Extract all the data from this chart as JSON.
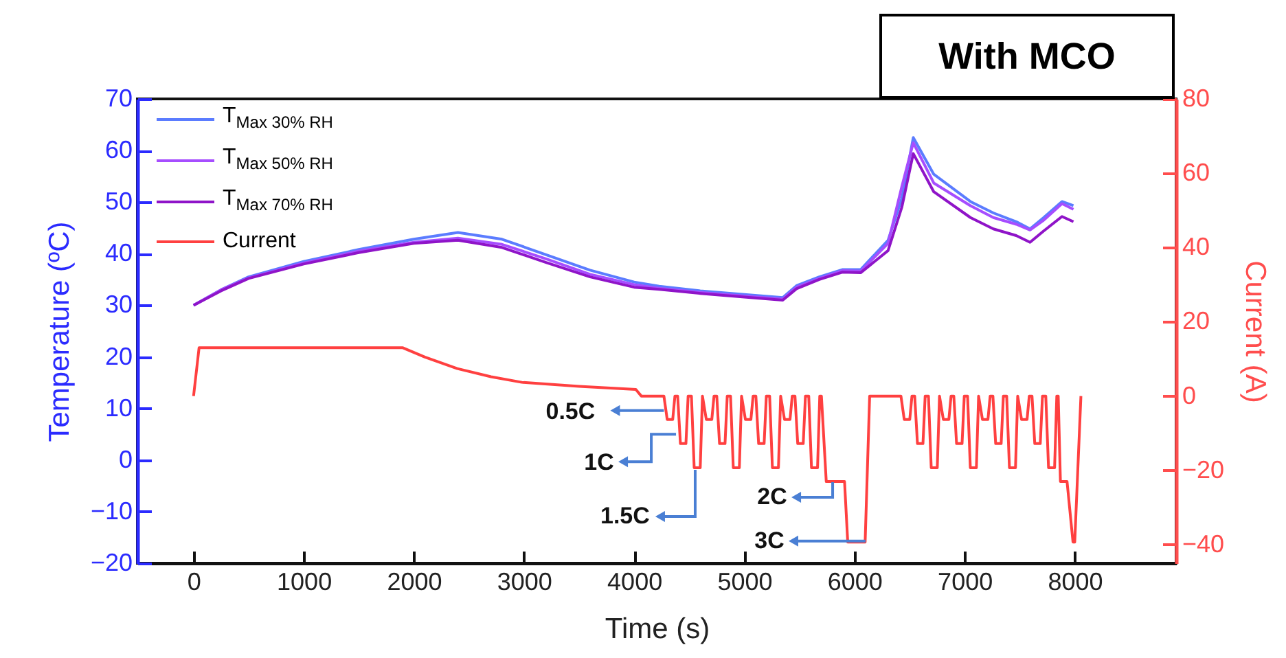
{
  "chart_data": {
    "type": "line",
    "title": "With MCO",
    "xlabel": "Time (s)",
    "ylabel": "Temperature (ºC)",
    "y2label": "Current (A)",
    "xlim": [
      -510,
      8920
    ],
    "xticks": [
      0,
      1000,
      2000,
      3000,
      4000,
      5000,
      6000,
      7000,
      8000
    ],
    "ylim": [
      -20,
      70
    ],
    "yticks": [
      -20,
      -10,
      0,
      10,
      20,
      30,
      40,
      50,
      60,
      70
    ],
    "y2lim": [
      -45,
      80
    ],
    "y2ticks": [
      -40,
      -20,
      0,
      20,
      40,
      60,
      80
    ],
    "legend": "top left",
    "series": [
      {
        "name": "T$_{Max 30% RH}$",
        "color": "#5b7cff",
        "x": [
          0,
          250,
          500,
          1000,
          1500,
          2000,
          2400,
          2800,
          3200,
          3600,
          4000,
          4227,
          4600,
          5000,
          5349,
          5474,
          5681,
          5889,
          6056,
          6305,
          6430,
          6534,
          6720,
          7053,
          7261,
          7469,
          7594,
          7718,
          7884,
          7988
        ],
        "values": [
          30,
          33,
          35.5,
          38.5,
          40.8,
          42.8,
          44.1,
          42.8,
          39.8,
          36.8,
          34.5,
          33.7,
          32.8,
          32.1,
          31.5,
          33.8,
          35.5,
          36.9,
          36.9,
          42.6,
          50.7,
          62.5,
          55.4,
          50.1,
          47.9,
          46.2,
          44.8,
          47.0,
          50.1,
          49.3
        ]
      },
      {
        "name": "T$_{Max 50% RH}$",
        "color": "#a64dff",
        "x": [
          0,
          250,
          500,
          1000,
          1500,
          2000,
          2400,
          2800,
          3200,
          3600,
          4000,
          4227,
          4600,
          5000,
          5349,
          5474,
          5681,
          5889,
          6056,
          6305,
          6430,
          6534,
          6720,
          7053,
          7261,
          7469,
          7594,
          7718,
          7884,
          7988
        ],
        "values": [
          30,
          33,
          35.3,
          38.2,
          40.5,
          42.2,
          43.0,
          41.8,
          39.0,
          36.0,
          34.0,
          33.3,
          32.5,
          31.8,
          31.2,
          33.5,
          35.2,
          36.7,
          36.6,
          42.0,
          53.0,
          61.5,
          53.7,
          49.3,
          47.0,
          45.7,
          44.6,
          46.5,
          49.7,
          48.6
        ]
      },
      {
        "name": "T$_{Max 70% RH}$",
        "color": "#8f14c8",
        "x": [
          0,
          250,
          500,
          1000,
          1500,
          2000,
          2400,
          2800,
          3200,
          3600,
          4000,
          4227,
          4600,
          5000,
          5349,
          5474,
          5681,
          5889,
          6056,
          6305,
          6430,
          6534,
          6720,
          7053,
          7261,
          7469,
          7594,
          7718,
          7884,
          7988
        ],
        "values": [
          30,
          32.8,
          35.2,
          38.0,
          40.2,
          42.0,
          42.6,
          41.2,
          38.3,
          35.5,
          33.5,
          33.1,
          32.3,
          31.6,
          31.0,
          33.2,
          35.0,
          36.4,
          36.3,
          40.6,
          49.0,
          59.4,
          52.0,
          47.0,
          44.8,
          43.5,
          42.2,
          44.4,
          47.2,
          46.2
        ]
      },
      {
        "name": "Current",
        "color": "#ff4040",
        "axis": "y2",
        "x": [
          0,
          50,
          1900,
          2100,
          2394,
          2700,
          2980,
          3500,
          4015,
          4065,
          4270,
          4300,
          4350,
          4370,
          4395,
          4420,
          4470,
          4490,
          4520,
          4545,
          4600,
          4620,
          4655,
          4705,
          4725,
          4750,
          4775,
          4825,
          4845,
          4875,
          4900,
          4955,
          4975,
          5010,
          5060,
          5080,
          5105,
          5130,
          5180,
          5200,
          5230,
          5255,
          5310,
          5330,
          5365,
          5415,
          5435,
          5460,
          5485,
          5535,
          5555,
          5585,
          5610,
          5665,
          5685,
          5700,
          5744,
          5910,
          5939,
          6097,
          6138,
          6422,
          6452,
          6502,
          6522,
          6547,
          6572,
          6622,
          6642,
          6672,
          6697,
          6752,
          6772,
          6807,
          6857,
          6877,
          6902,
          6927,
          6977,
          6997,
          7027,
          7052,
          7107,
          7127,
          7162,
          7212,
          7232,
          7257,
          7282,
          7332,
          7352,
          7382,
          7407,
          7462,
          7482,
          7517,
          7567,
          7587,
          7612,
          7637,
          7687,
          7707,
          7737,
          7762,
          7817,
          7837,
          7850,
          7870,
          7930,
          7984,
          8000,
          8056
        ],
        "values": [
          0,
          13,
          13,
          10.5,
          7.4,
          5.2,
          3.7,
          2.6,
          1.8,
          0,
          0,
          -6.3,
          -6.3,
          0,
          0,
          -12.8,
          -12.8,
          0,
          0,
          -19.3,
          -19.3,
          0,
          -6.3,
          -6.3,
          0,
          0,
          -12.8,
          -12.8,
          0,
          0,
          -19.3,
          -19.3,
          0,
          -6.3,
          -6.3,
          0,
          0,
          -12.8,
          -12.8,
          0,
          0,
          -19.3,
          -19.3,
          0,
          -6.3,
          -6.3,
          0,
          0,
          -12.8,
          -12.8,
          0,
          0,
          -19.3,
          -19.3,
          0,
          0,
          -23,
          -23,
          -39.3,
          -39.3,
          0,
          0,
          -6.3,
          -6.3,
          0,
          0,
          -12.8,
          -12.8,
          0,
          0,
          -19.3,
          -19.3,
          0,
          -6.3,
          -6.3,
          0,
          0,
          -12.8,
          -12.8,
          0,
          0,
          -19.3,
          -19.3,
          0,
          -6.3,
          -6.3,
          0,
          0,
          -12.8,
          -12.8,
          0,
          0,
          -19.3,
          -19.3,
          0,
          -6.3,
          -6.3,
          0,
          0,
          -12.8,
          -12.8,
          0,
          0,
          -19.3,
          -19.3,
          0,
          0,
          -23,
          -23,
          -39.3,
          -39.3,
          0
        ]
      }
    ],
    "annotations": [
      {
        "text": "0.5C",
        "x": 4270,
        "y": 9.6
      },
      {
        "text": "1C",
        "x": 4380,
        "y": 5.0
      },
      {
        "text": "1.5C",
        "x": 4554,
        "y": -1.9
      },
      {
        "text": "2C",
        "x": 5802,
        "y": -4.3
      },
      {
        "text": "3C",
        "x": 6101,
        "y": -15.7
      }
    ]
  }
}
